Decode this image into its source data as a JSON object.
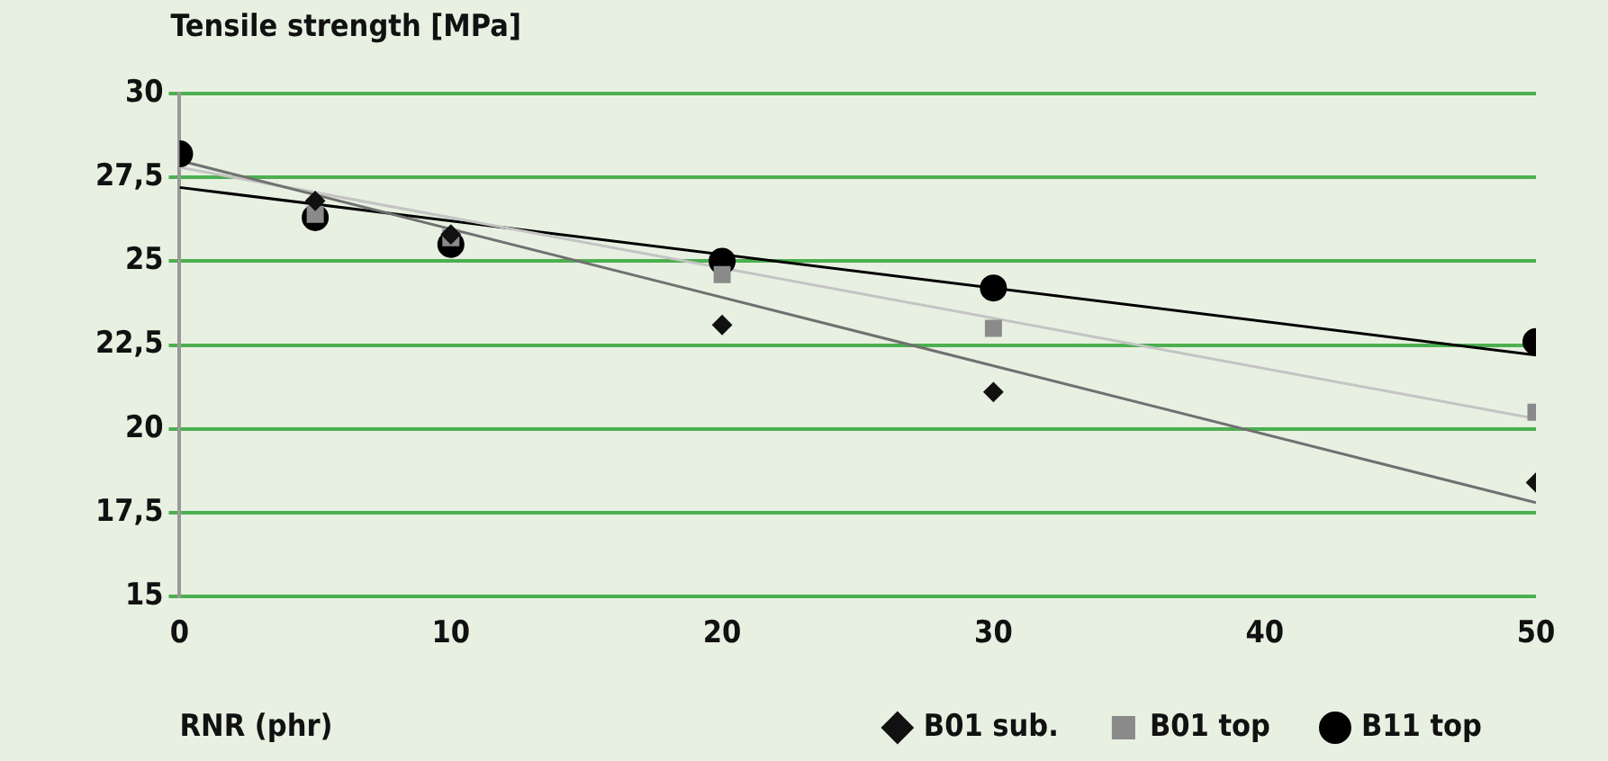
{
  "chart_data": {
    "type": "scatter",
    "ylabel": "Tensile strength [MPa]",
    "xlabel": "RNR (phr)",
    "xlim": [
      0,
      50
    ],
    "xticks": [
      0,
      10,
      20,
      30,
      40,
      50
    ],
    "ylim": [
      15,
      30
    ],
    "yticks": [
      15,
      {
        "value": 17.5,
        "label": "17,5"
      },
      20,
      {
        "value": 22.5,
        "label": "22,5"
      },
      25,
      {
        "value": 27.5,
        "label": "27,5"
      },
      30
    ],
    "grid": "y",
    "legend": "bottom",
    "series": [
      {
        "name": "B01 sub.",
        "type": "scatter",
        "marker": "diamond",
        "color": "#111111",
        "x": [
          5,
          10,
          20,
          30,
          50
        ],
        "values": [
          26.8,
          25.8,
          23.1,
          21.1,
          18.4
        ]
      },
      {
        "name": "B01 top",
        "type": "scatter",
        "marker": "square",
        "color": "#8a8a8a",
        "x": [
          5,
          10,
          20,
          30,
          50
        ],
        "values": [
          26.4,
          25.7,
          24.6,
          23.0,
          20.5
        ]
      },
      {
        "name": "B11 top",
        "type": "scatter",
        "marker": "circle",
        "color": "#000000",
        "x": [
          0,
          5,
          10,
          20,
          30,
          50
        ],
        "values": [
          28.2,
          26.3,
          25.5,
          25.0,
          24.2,
          22.6
        ]
      },
      {
        "type": "line",
        "marker": "none",
        "color": "#707070",
        "x": [
          0,
          50
        ],
        "values": [
          28.0,
          17.8
        ]
      },
      {
        "type": "line",
        "marker": "none",
        "color": "#c4c4c4",
        "x": [
          0,
          50
        ],
        "values": [
          27.8,
          20.3
        ]
      },
      {
        "type": "line",
        "marker": "none",
        "color": "#000000",
        "x": [
          0,
          50
        ],
        "values": [
          27.2,
          22.2
        ]
      }
    ]
  }
}
